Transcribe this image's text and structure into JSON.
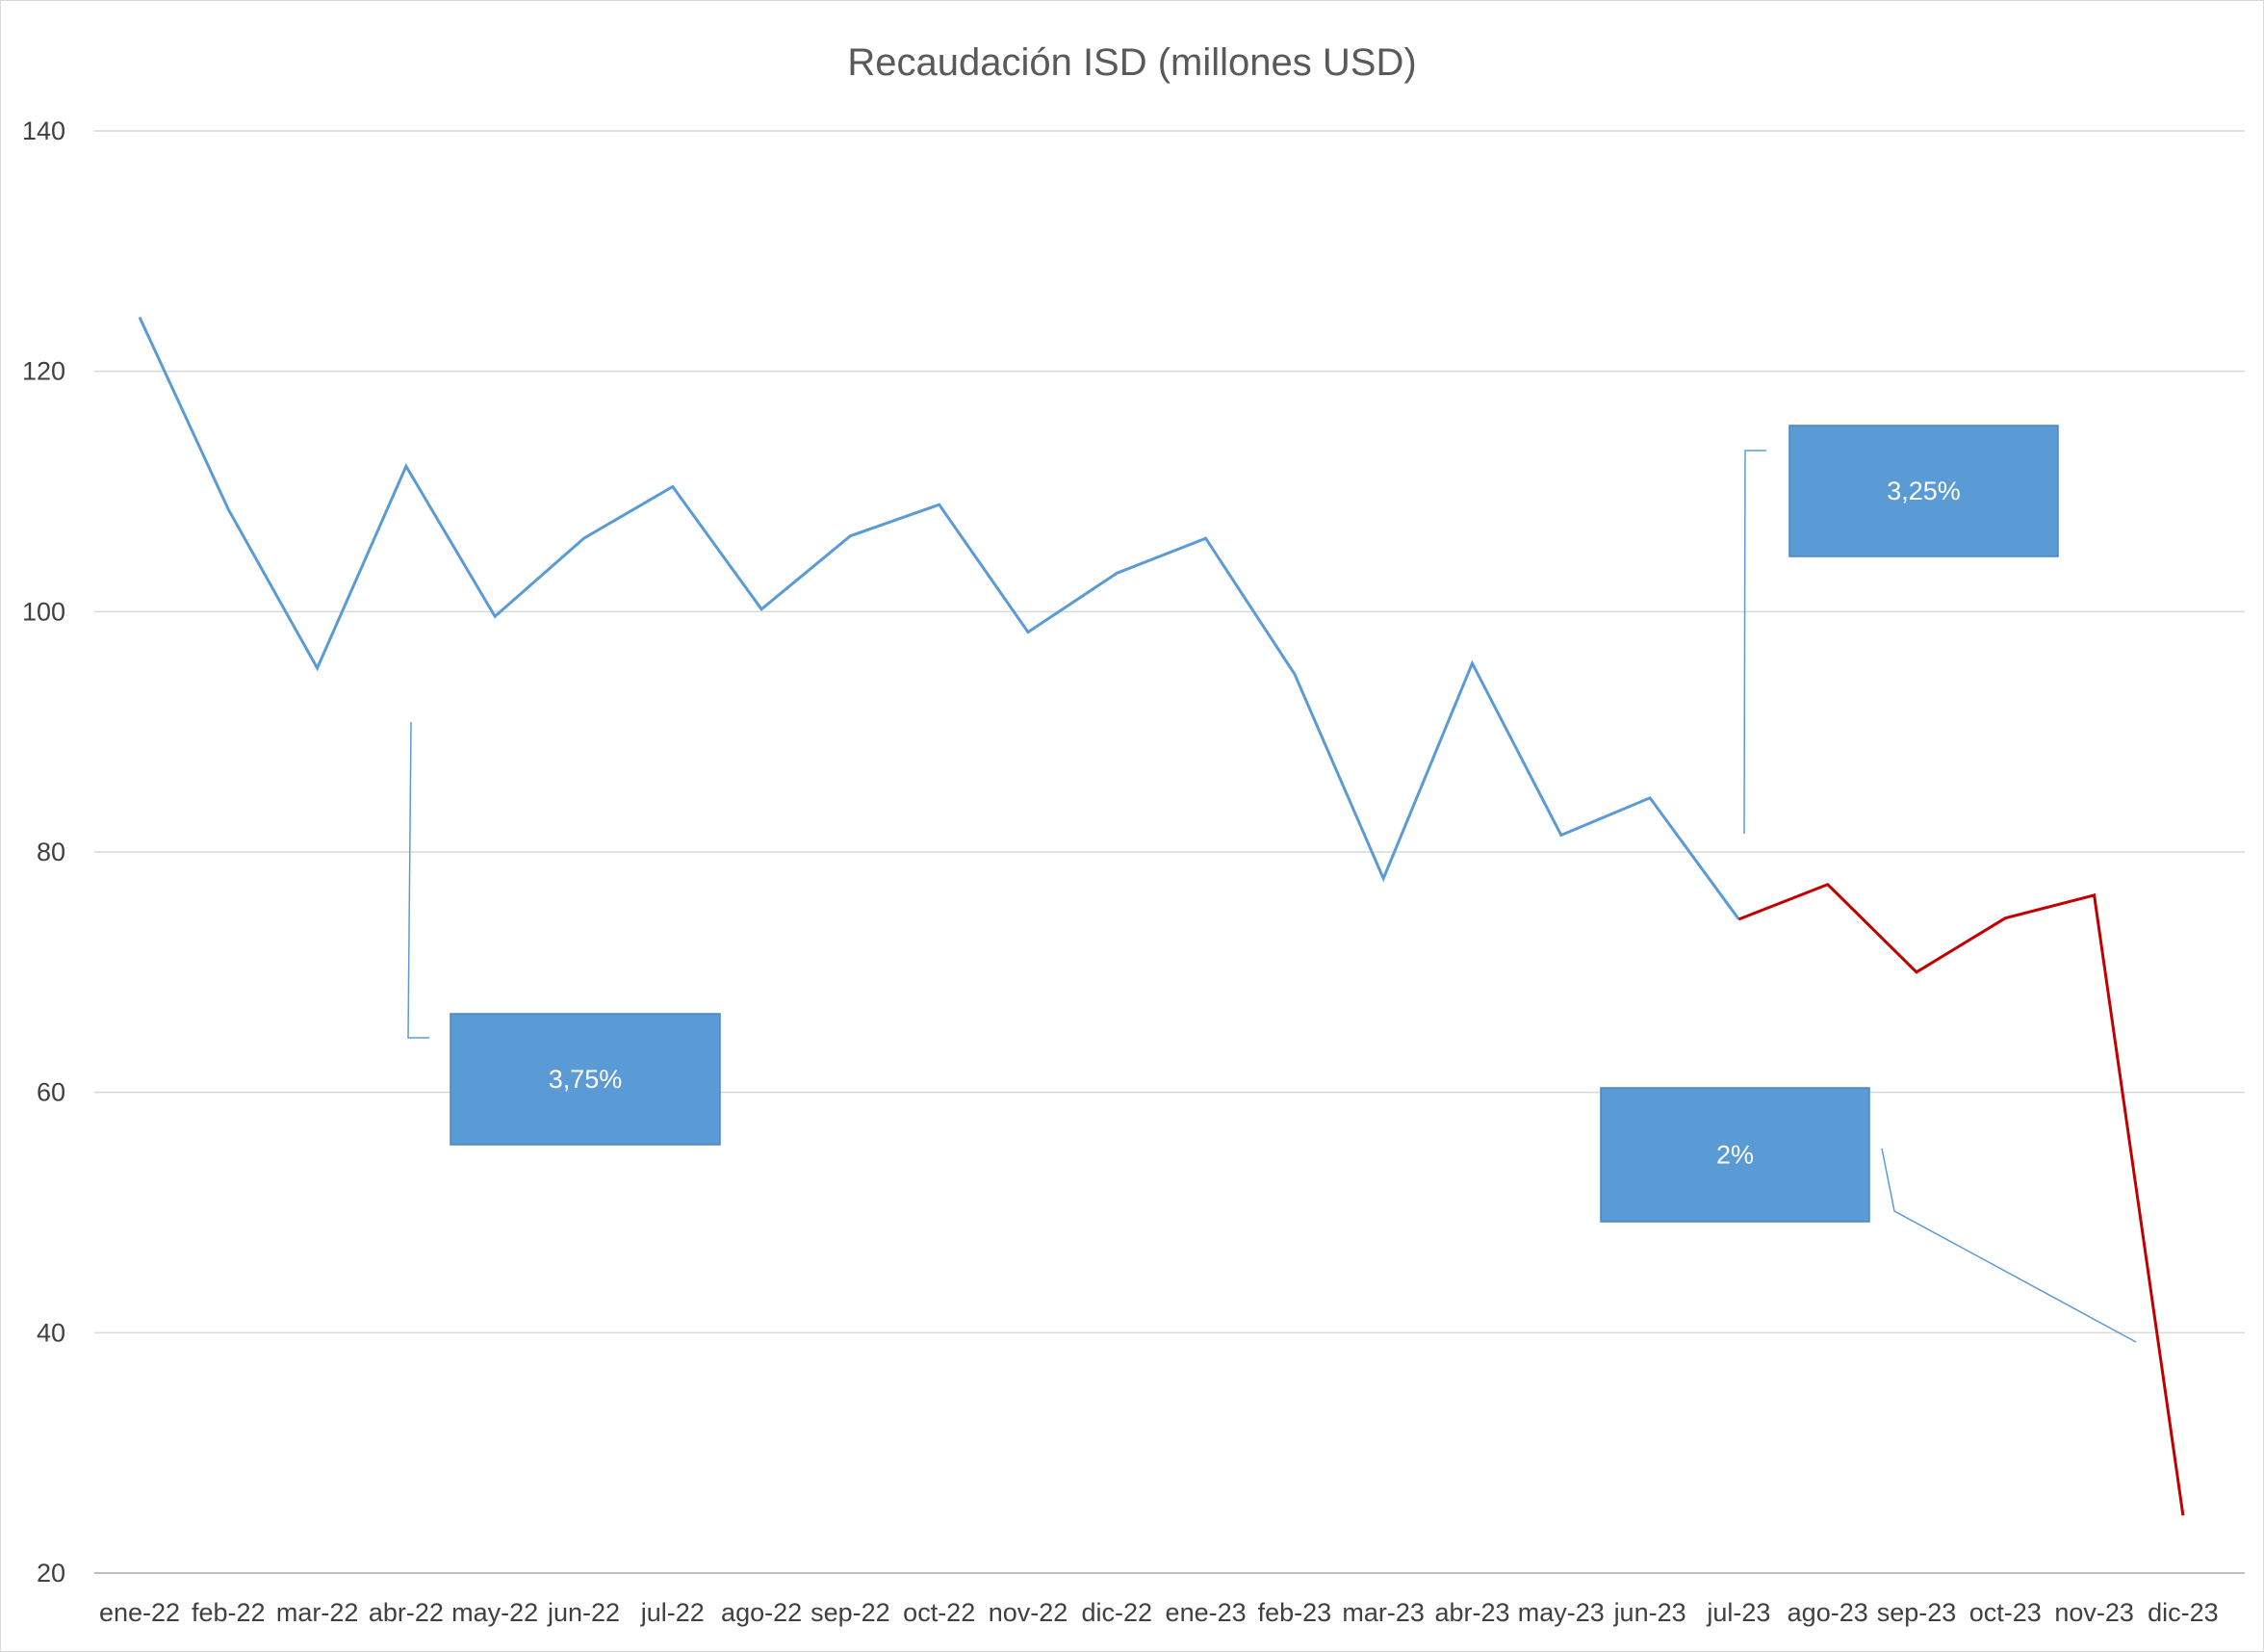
{
  "chart_data": {
    "type": "line",
    "title": "Recaudación ISD (millones USD)",
    "xlabel": "",
    "ylabel": "",
    "ylim": [
      20,
      140
    ],
    "yticks": [
      20,
      40,
      60,
      80,
      100,
      120,
      140
    ],
    "grid": true,
    "legend": "none",
    "categories": [
      "ene-22",
      "feb-22",
      "mar-22",
      "abr-22",
      "may-22",
      "jun-22",
      "jul-22",
      "ago-22",
      "sep-22",
      "oct-22",
      "nov-22",
      "dic-22",
      "ene-23",
      "feb-23",
      "mar-23",
      "abr-23",
      "may-23",
      "jun-23",
      "jul-23",
      "ago-23",
      "sep-23",
      "oct-23",
      "nov-23",
      "dic-23"
    ],
    "series": [
      {
        "color": "#5b9bd5",
        "values": [
          124.5,
          108.5,
          95.3,
          112.1,
          99.6,
          106.1,
          110.4,
          100.2,
          106.3,
          108.9,
          98.3,
          103.2,
          106.1,
          94.8,
          77.8,
          95.7,
          81.4,
          84.5,
          74.4,
          null,
          null,
          null,
          null,
          null
        ]
      },
      {
        "color": "#c00000",
        "values": [
          null,
          null,
          null,
          null,
          null,
          null,
          null,
          null,
          null,
          null,
          null,
          null,
          null,
          null,
          null,
          null,
          null,
          null,
          74.4,
          77.3,
          70.0,
          74.5,
          76.4,
          24.8
        ]
      }
    ],
    "annotations": [
      {
        "text": "3,75%",
        "box_fill": "#5b9bd5"
      },
      {
        "text": "3,25%",
        "box_fill": "#5b9bd5"
      },
      {
        "text": "2%",
        "box_fill": "#5b9bd5"
      }
    ]
  },
  "colors": {
    "gridline": "#d9d9d9",
    "axis": "#bfbfbf",
    "leader_line": "#5b9bd5"
  }
}
